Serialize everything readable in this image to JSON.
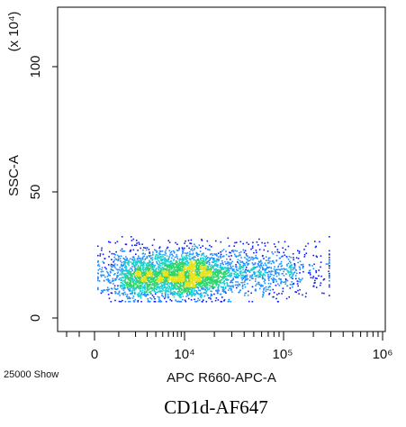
{
  "chart_data": {
    "type": "scatter",
    "title": "",
    "caption": "CD1d-AF647",
    "xlabel": "APC R660-APC-A",
    "ylabel": "SSC-A",
    "y_multiplier": "(x 10⁴)",
    "x_scale": "biexponential",
    "x_ticks": [
      {
        "value": 0,
        "label": "0"
      },
      {
        "value": 10000,
        "label": "10⁴"
      },
      {
        "value": 100000,
        "label": "10⁵"
      },
      {
        "value": 1000000,
        "label": "10⁶"
      }
    ],
    "y_ticks": [
      {
        "value": 0,
        "label": "0"
      },
      {
        "value": 50,
        "label": "50"
      },
      {
        "value": 100,
        "label": "100"
      }
    ],
    "ylim": [
      -5,
      125
    ],
    "events_shown": "25000 Show",
    "grid": false,
    "density_colors": [
      "#0a1aff",
      "#1f8fff",
      "#19d0d0",
      "#2fd56a",
      "#e8e21a"
    ],
    "populations": [
      {
        "x_center": 2500,
        "y_center": 17,
        "relative_density": 0.85
      },
      {
        "x_center": 11000,
        "y_center": 17,
        "relative_density": 1.0
      },
      {
        "x_center": 40000,
        "y_center": 19,
        "relative_density": 0.35
      }
    ]
  }
}
